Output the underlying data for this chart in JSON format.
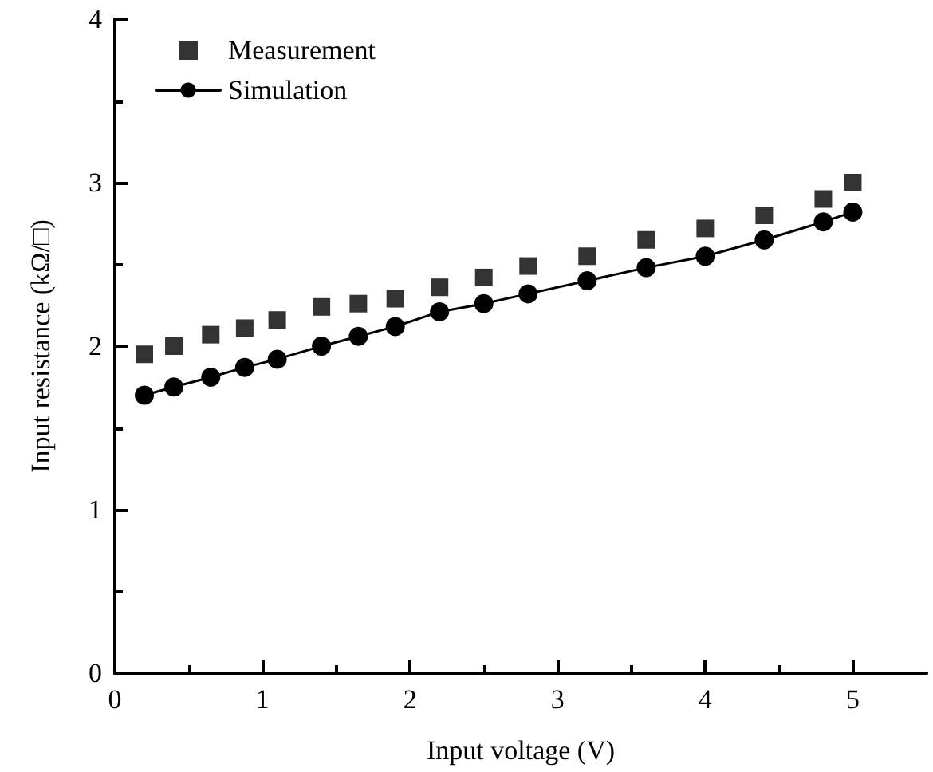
{
  "chart_data": {
    "type": "scatter",
    "xlabel": "Input voltage (V)",
    "ylabel": "Input resistance (kΩ/□)",
    "xlim": [
      0,
      5.5
    ],
    "xticks": [
      0,
      1,
      2,
      3,
      4,
      5
    ],
    "ylim": [
      0,
      4
    ],
    "yticks": [
      0,
      1,
      2,
      3,
      4
    ],
    "grid": false,
    "legend": "top left",
    "series": [
      {
        "name": "Measurement",
        "marker": "square",
        "color": "#000000",
        "x": [
          0.2,
          0.4,
          0.65,
          0.88,
          1.1,
          1.4,
          1.65,
          1.9,
          2.2,
          2.5,
          2.8,
          3.2,
          3.6,
          4.0,
          4.4,
          4.8,
          5.0
        ],
        "values": [
          1.95,
          2.0,
          2.07,
          2.11,
          2.16,
          2.24,
          2.26,
          2.29,
          2.36,
          2.42,
          2.49,
          2.55,
          2.65,
          2.72,
          2.8,
          2.9,
          3.0
        ]
      },
      {
        "name": "Simulation",
        "type": "line",
        "marker": "circle",
        "line_style": "solid",
        "color": "#000000",
        "x": [
          0.2,
          0.4,
          0.65,
          0.88,
          1.1,
          1.4,
          1.65,
          1.9,
          2.2,
          2.5,
          2.8,
          3.2,
          3.6,
          4.0,
          4.4,
          4.8,
          5.0
        ],
        "values": [
          1.7,
          1.75,
          1.81,
          1.87,
          1.92,
          2.0,
          2.06,
          2.12,
          2.21,
          2.26,
          2.32,
          2.4,
          2.48,
          2.55,
          2.65,
          2.76,
          2.82
        ]
      }
    ]
  }
}
